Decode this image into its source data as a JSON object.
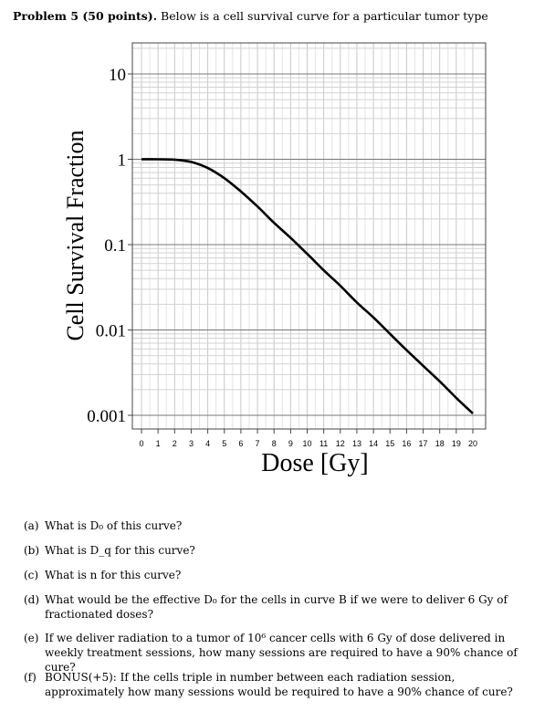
{
  "header": {
    "problem": "Problem 5 (50 points).",
    "intro": "Below is a cell survival curve for a particular tumor type"
  },
  "chart_data": {
    "type": "line",
    "xlabel": "Dose [Gy]",
    "ylabel": "Cell Survival Fraction",
    "yscale": "log",
    "xlim": [
      0,
      20
    ],
    "ylim": [
      0.001,
      10
    ],
    "x_ticks": [
      "0",
      "1",
      "2",
      "3",
      "4",
      "5",
      "6",
      "7",
      "8",
      "9",
      "10",
      "11",
      "12",
      "13",
      "14",
      "15",
      "16",
      "17",
      "18",
      "19",
      "20"
    ],
    "y_ticks": [
      "10",
      "1",
      "0.1",
      "0.01",
      "0.001"
    ],
    "grid": true,
    "series": [
      {
        "x": [
          0,
          1,
          2,
          3,
          4,
          5,
          6,
          7,
          8,
          9,
          10,
          11,
          12,
          13,
          14,
          15,
          16,
          17,
          18,
          19,
          20
        ],
        "y": [
          1.0,
          1.0,
          0.99,
          0.93,
          0.79,
          0.6,
          0.42,
          0.28,
          0.18,
          0.12,
          0.078,
          0.05,
          0.033,
          0.021,
          0.014,
          0.009,
          0.0058,
          0.0038,
          0.0025,
          0.0016,
          0.00105
        ]
      }
    ]
  },
  "questions": [
    {
      "label": "(a)",
      "text": "What is D₀ of this curve?"
    },
    {
      "label": "(b)",
      "text": "What is D_q for this curve?"
    },
    {
      "label": "(c)",
      "text": "What is n for this curve?"
    },
    {
      "label": "(d)",
      "text": "What would be the effective D₀ for the cells in curve B if we were to deliver 6 Gy of fractionated doses?"
    },
    {
      "label": "(e)",
      "text": "If we deliver radiation to a tumor of 10⁶ cancer cells with 6 Gy of dose delivered in weekly treatment sessions, how many sessions are required to have a 90% chance of cure?"
    },
    {
      "label": "(f)",
      "text": "BONUS(+5): If the cells triple in number between each radiation session, approximately how many sessions would be required to have a 90% chance of cure?"
    }
  ]
}
